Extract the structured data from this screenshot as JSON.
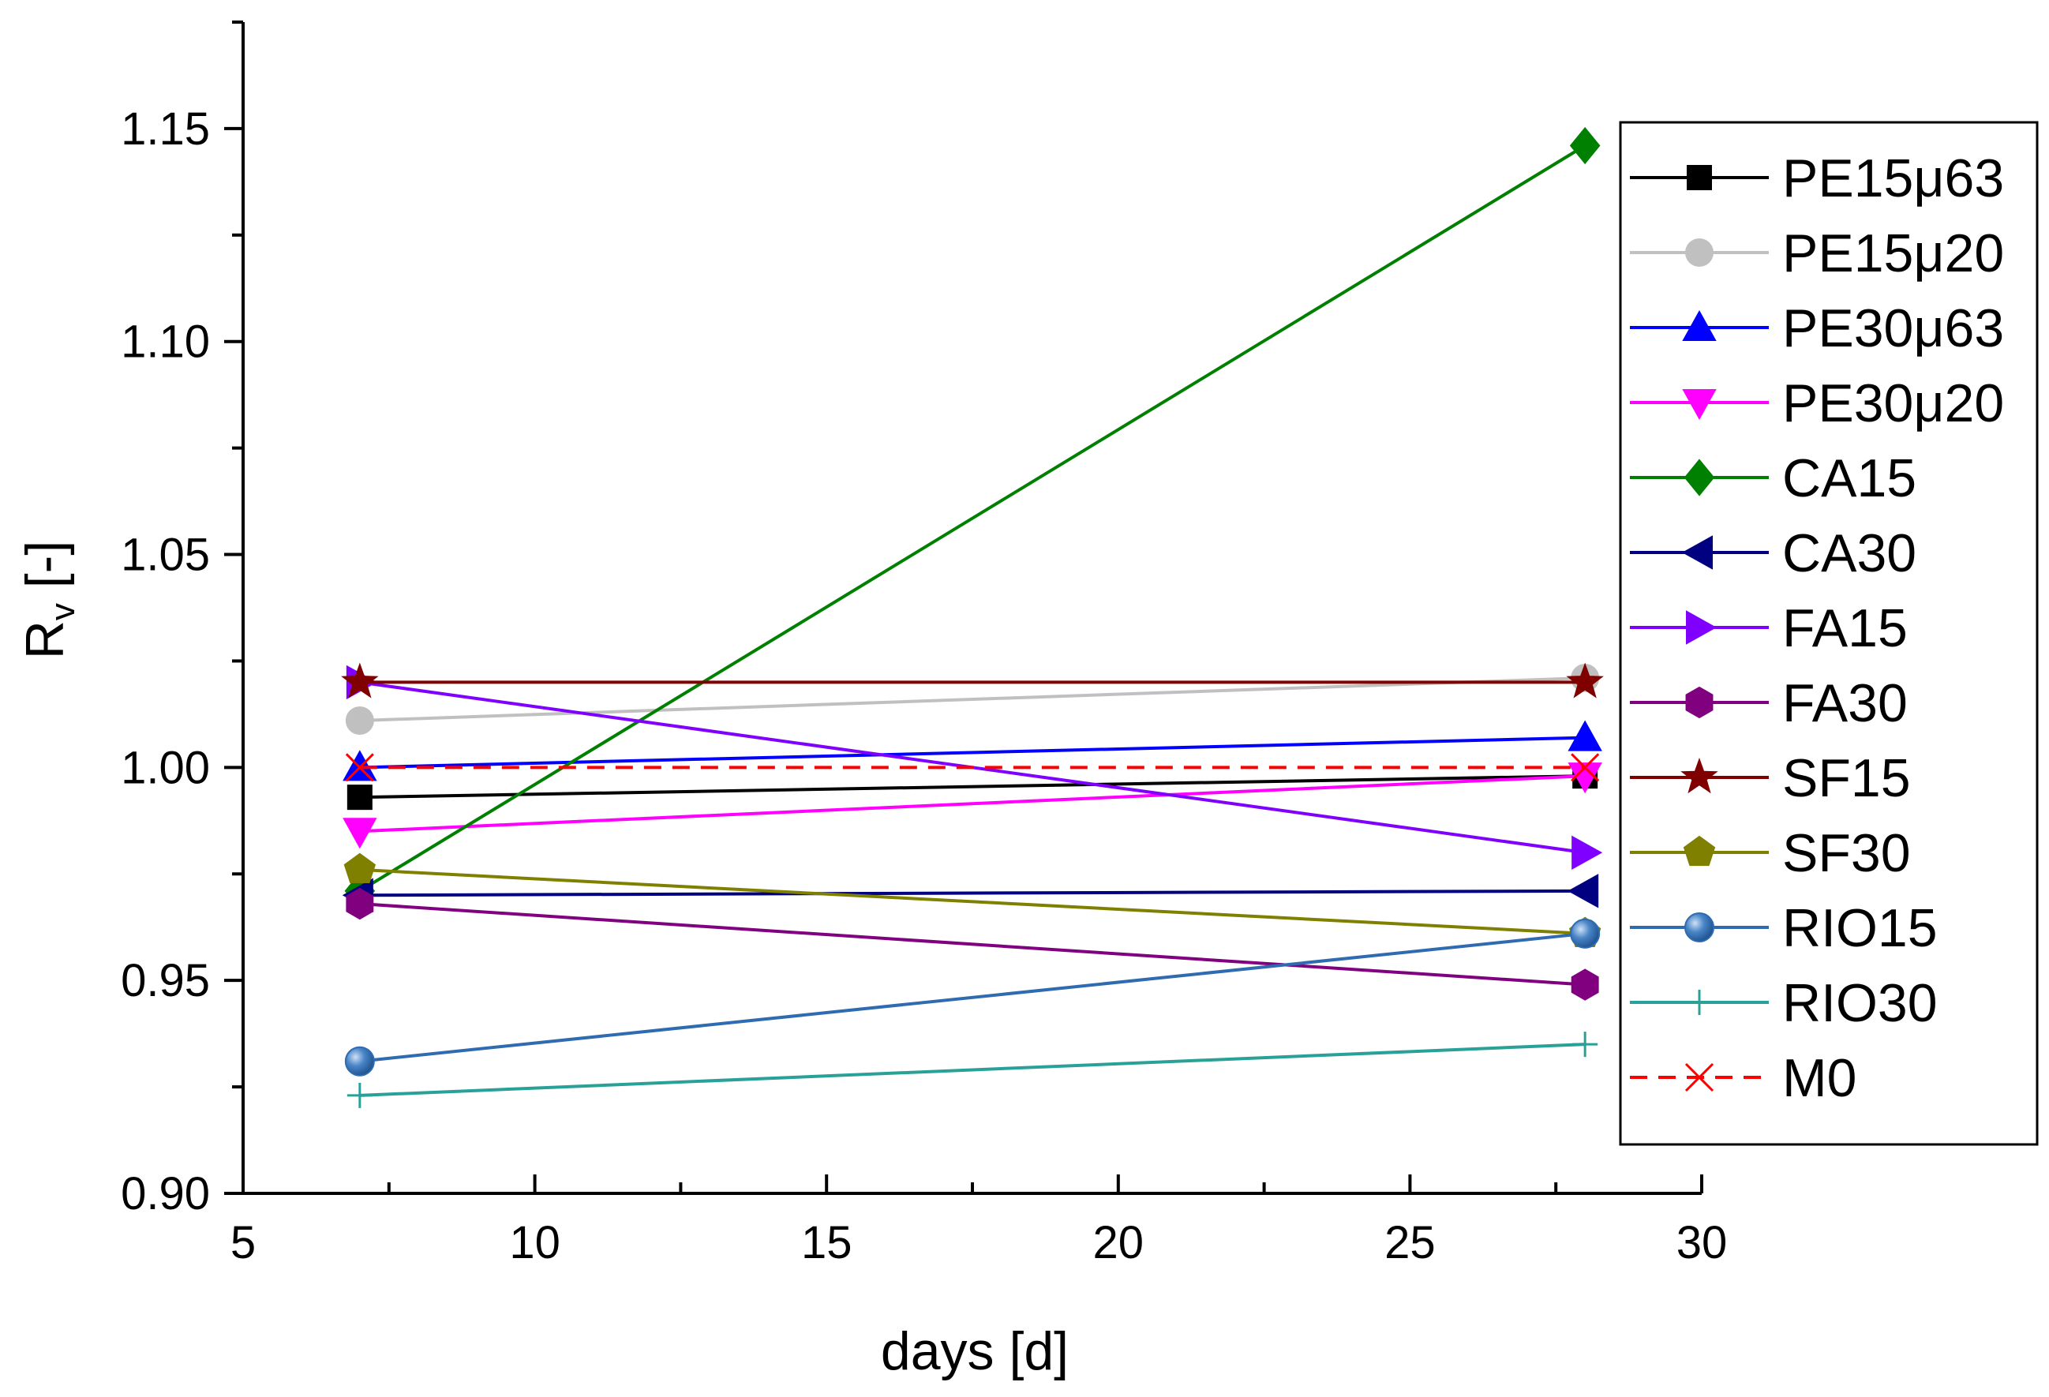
{
  "chart_data": {
    "type": "line",
    "title": "",
    "xlabel": "days [d]",
    "ylabel": "R",
    "ylabel_sub": "v",
    "ylabel_suffix": " [-]",
    "xlim": [
      5,
      30
    ],
    "ylim": [
      0.9,
      1.175
    ],
    "xticks": [
      5,
      10,
      15,
      20,
      25,
      30
    ],
    "xtick_labels": [
      "5",
      "10",
      "15",
      "20",
      "25",
      "30"
    ],
    "yticks": [
      0.9,
      0.95,
      1.0,
      1.05,
      1.1,
      1.15
    ],
    "ytick_labels": [
      "0.90",
      "0.95",
      "1.00",
      "1.05",
      "1.10",
      "1.15"
    ],
    "grid": false,
    "legend_position": "right",
    "x": [
      7,
      28
    ],
    "series": [
      {
        "name": "PE15μ63",
        "values": [
          0.993,
          0.998
        ],
        "color": "#000000",
        "marker": "square",
        "dashed": false
      },
      {
        "name": "PE15μ20",
        "values": [
          1.011,
          1.021
        ],
        "color": "#c0c0c0",
        "marker": "circle",
        "dashed": false
      },
      {
        "name": "PE30μ63",
        "values": [
          1.0,
          1.007
        ],
        "color": "#0000ff",
        "marker": "triangle-up",
        "dashed": false
      },
      {
        "name": "PE30μ20",
        "values": [
          0.985,
          0.998
        ],
        "color": "#ff00ff",
        "marker": "triangle-down",
        "dashed": false
      },
      {
        "name": "CA15",
        "values": [
          0.971,
          1.146
        ],
        "color": "#008000",
        "marker": "diamond",
        "dashed": false
      },
      {
        "name": "CA30",
        "values": [
          0.97,
          0.971
        ],
        "color": "#000080",
        "marker": "triangle-left",
        "dashed": false
      },
      {
        "name": "FA15",
        "values": [
          1.02,
          0.98
        ],
        "color": "#8000ff",
        "marker": "triangle-right",
        "dashed": false
      },
      {
        "name": "FA30",
        "values": [
          0.968,
          0.949
        ],
        "color": "#800080",
        "marker": "hexagon",
        "dashed": false
      },
      {
        "name": "SF15",
        "values": [
          1.02,
          1.02
        ],
        "color": "#800000",
        "marker": "star",
        "dashed": false
      },
      {
        "name": "SF30",
        "values": [
          0.976,
          0.961
        ],
        "color": "#808000",
        "marker": "pentagon",
        "dashed": false
      },
      {
        "name": "RIO15",
        "values": [
          0.931,
          0.961
        ],
        "color": "#2e6bb0",
        "marker": "sphere",
        "dashed": false
      },
      {
        "name": "RIO30",
        "values": [
          0.923,
          0.935
        ],
        "color": "#2aa198",
        "marker": "plus",
        "dashed": false
      },
      {
        "name": "M0",
        "values": [
          1.0,
          1.0
        ],
        "color": "#ff0000",
        "marker": "x",
        "dashed": true
      }
    ]
  }
}
